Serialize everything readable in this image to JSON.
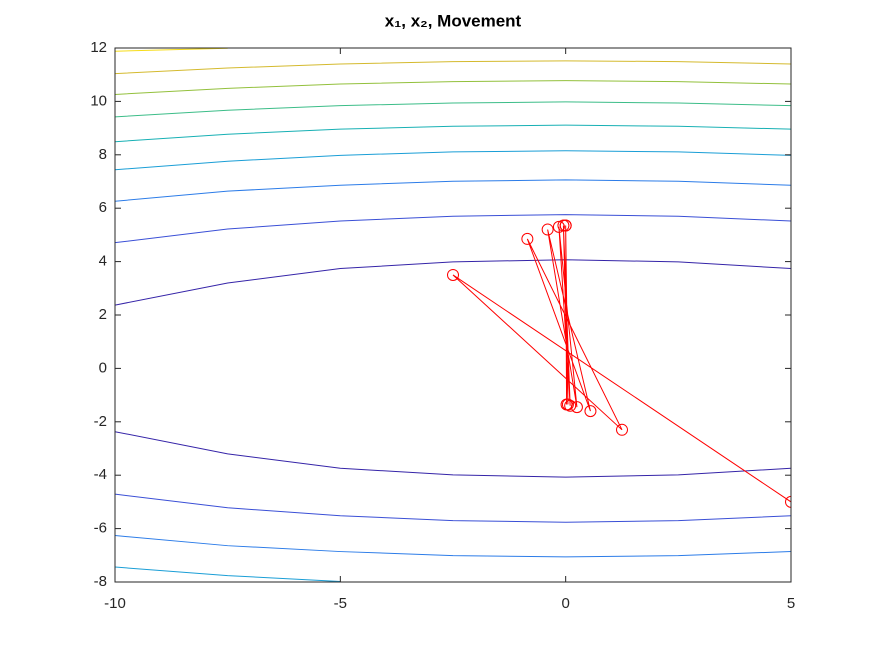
{
  "chart_data": {
    "type": "contour",
    "title": "x₁, x₂, Movement",
    "xlim": [
      -10,
      5
    ],
    "ylim": [
      -8,
      12
    ],
    "xticks": [
      -10,
      -5,
      0,
      5
    ],
    "yticks": [
      -8,
      -6,
      -4,
      -2,
      0,
      2,
      4,
      6,
      8,
      10,
      12
    ],
    "contours": [
      {
        "color": "#3524a8",
        "x": [
          -10,
          -7.5,
          -5,
          -2.5,
          0,
          2.5,
          5
        ],
        "y": [
          2.37,
          3.2,
          3.74,
          3.99,
          4.07,
          3.99,
          3.74
        ]
      },
      {
        "color": "#3524a8",
        "x": [
          -10,
          -7.5,
          -5,
          -2.5,
          0,
          2.5,
          5
        ],
        "y": [
          -2.37,
          -3.2,
          -3.74,
          -3.99,
          -4.07,
          -3.99,
          -3.74
        ]
      },
      {
        "color": "#3a4fd6",
        "x": [
          -10,
          -7.5,
          -5,
          -2.5,
          0,
          2.5,
          5
        ],
        "y": [
          4.71,
          5.22,
          5.52,
          5.7,
          5.76,
          5.7,
          5.52
        ]
      },
      {
        "color": "#3a4fd6",
        "x": [
          -10,
          -7.5,
          -5,
          -2.5,
          0,
          2.5,
          5
        ],
        "y": [
          -4.71,
          -5.22,
          -5.52,
          -5.7,
          -5.76,
          -5.7,
          -5.52
        ]
      },
      {
        "color": "#2c7ce8",
        "x": [
          -10,
          -7.5,
          -5,
          -2.5,
          0,
          2.5,
          5
        ],
        "y": [
          6.26,
          6.64,
          6.86,
          7.01,
          7.06,
          7.01,
          6.86
        ]
      },
      {
        "color": "#2c7ce8",
        "x": [
          -10,
          -7.5,
          -5,
          -2.5,
          0,
          2.5,
          5
        ],
        "y": [
          -6.26,
          -6.64,
          -6.86,
          -7.01,
          -7.06,
          -7.01,
          -6.86
        ]
      },
      {
        "color": "#1a9ed6",
        "x": [
          -10,
          -7.5,
          -5,
          -2.5,
          0,
          2.5,
          5
        ],
        "y": [
          7.44,
          7.76,
          7.98,
          8.11,
          8.15,
          8.11,
          7.98
        ]
      },
      {
        "color": "#1a9ed6",
        "x": [
          -10,
          -7.5,
          -5
        ],
        "y": [
          -7.44,
          -7.76,
          -7.98
        ]
      },
      {
        "color": "#17b0b4",
        "x": [
          -10,
          -7.5,
          -5,
          -2.5,
          0,
          2.5,
          5
        ],
        "y": [
          8.49,
          8.77,
          8.96,
          9.07,
          9.11,
          9.07,
          8.96
        ]
      },
      {
        "color": "#3cbd88",
        "x": [
          -10,
          -7.5,
          -5,
          -2.5,
          0,
          2.5,
          5
        ],
        "y": [
          9.42,
          9.67,
          9.84,
          9.94,
          9.98,
          9.94,
          9.84
        ]
      },
      {
        "color": "#93c03c",
        "x": [
          -10,
          -7.5,
          -5,
          -2.5,
          0,
          2.5,
          5
        ],
        "y": [
          10.26,
          10.49,
          10.65,
          10.74,
          10.78,
          10.74,
          10.65
        ]
      },
      {
        "color": "#d4ba2e",
        "x": [
          -10,
          -7.5,
          -5,
          -2.5,
          0,
          2.5,
          5
        ],
        "y": [
          11.04,
          11.25,
          11.4,
          11.49,
          11.52,
          11.49,
          11.4
        ]
      },
      {
        "color": "#f6dc18",
        "x": [
          -10,
          -7.5
        ],
        "y": [
          11.88,
          11.99
        ]
      }
    ],
    "trajectory": {
      "color": "#ff0000",
      "x": [
        5,
        -2.5,
        1.25,
        -0.85,
        0.55,
        -0.4,
        0.25,
        -0.15,
        0.1,
        -0.05,
        0.05,
        0,
        0.02,
        0
      ],
      "y": [
        -5,
        3.5,
        -2.3,
        4.85,
        -1.6,
        5.2,
        -1.45,
        5.3,
        -1.4,
        5.35,
        -1.35,
        5.35,
        -1.35,
        5.35
      ]
    }
  }
}
